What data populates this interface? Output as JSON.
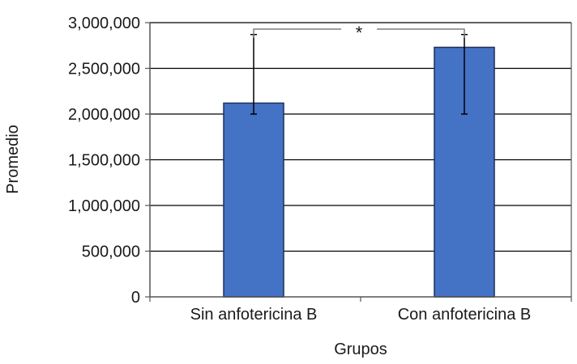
{
  "chart_data": {
    "type": "bar",
    "categories": [
      "Sin anfotericina B",
      "Con anfotericina B"
    ],
    "values": [
      2120000,
      2730000
    ],
    "error_low": [
      2000000,
      2000000
    ],
    "error_high": [
      2870000,
      2870000
    ],
    "ylim": [
      0,
      3000000
    ],
    "yticks": [
      0,
      500000,
      1000000,
      1500000,
      2000000,
      2500000,
      3000000
    ],
    "ytick_labels": [
      "0",
      "500,000",
      "1,000,000",
      "1,500,000",
      "2,000,000",
      "2,500,000",
      "3,000,000"
    ],
    "xlabel": "Grupos",
    "ylabel": "Promedio",
    "grid": true,
    "bar_color": "#4472c4",
    "significance": {
      "label": "*",
      "between": [
        0,
        1
      ],
      "level": 2870000
    }
  }
}
